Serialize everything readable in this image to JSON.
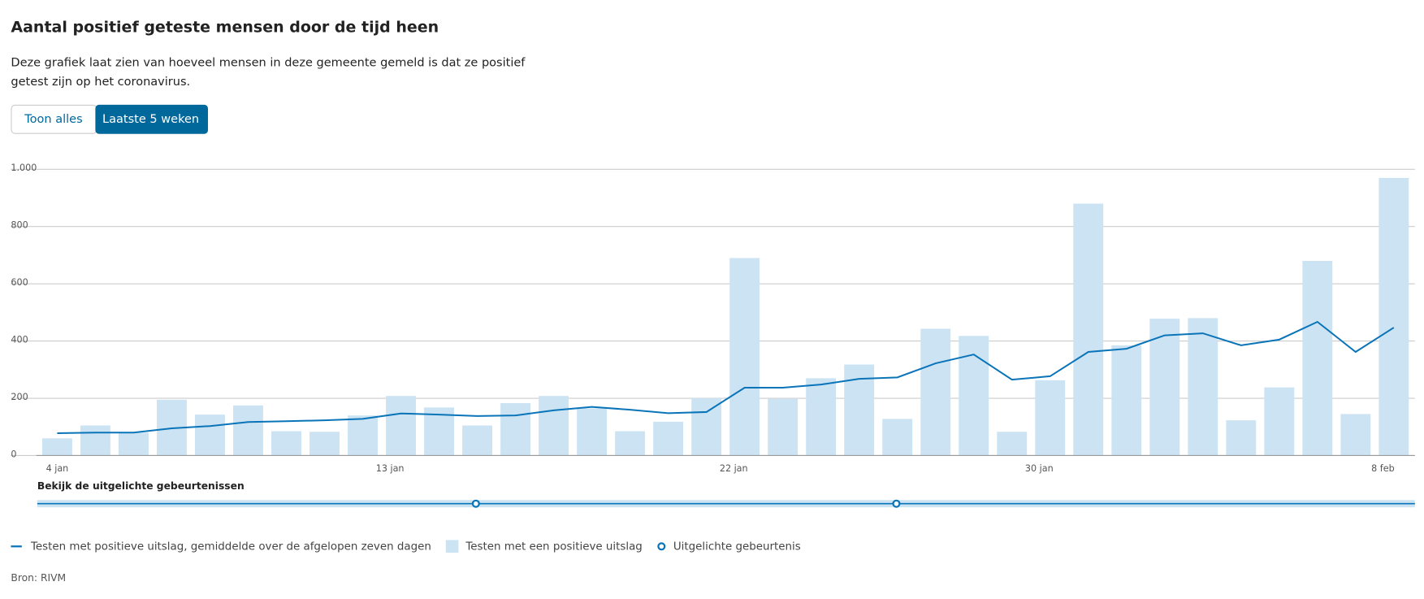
{
  "header": {
    "title": "Aantal positief geteste mensen door de tijd heen",
    "description_line1": "Deze grafiek laat zien van hoeveel mensen in deze gemeente gemeld is dat ze positief",
    "description_line2": "getest zijn op het coronavirus.",
    "buttons": [
      "Toon alles",
      "Laatste 5 weken"
    ]
  },
  "chart_data": {
    "type": "bar-line",
    "categories": [
      "4 jan",
      null,
      null,
      null,
      null,
      null,
      null,
      null,
      null,
      "13 jan",
      null,
      null,
      null,
      null,
      null,
      null,
      null,
      null,
      "22 jan",
      null,
      null,
      null,
      null,
      null,
      null,
      null,
      "30 jan",
      null,
      null,
      null,
      null,
      null,
      null,
      null,
      null,
      "8 feb"
    ],
    "series": [
      {
        "name": "Testen met een positieve uitslag",
        "type": "bar",
        "color": "#cce3f4",
        "values": [
          60,
          105,
          80,
          195,
          143,
          175,
          85,
          83,
          140,
          208,
          168,
          105,
          183,
          208,
          165,
          85,
          118,
          200,
          690,
          198,
          270,
          318,
          128,
          443,
          418,
          83,
          263,
          880,
          385,
          478,
          480,
          123,
          238,
          680,
          145,
          970
        ]
      },
      {
        "name": "Testen met positieve uitslag, gemiddelde over de afgelopen zeven dagen",
        "type": "line",
        "color": "#0a74b8",
        "values": [
          78,
          80,
          80,
          95,
          103,
          117,
          120,
          123,
          128,
          147,
          143,
          138,
          140,
          158,
          170,
          160,
          148,
          152,
          237,
          237,
          248,
          268,
          273,
          322,
          353,
          265,
          277,
          362,
          373,
          420,
          427,
          385,
          405,
          467,
          362,
          447
        ]
      }
    ],
    "ylim": [
      0,
      1000
    ],
    "yticks": [
      0,
      200,
      400,
      600,
      800,
      {
        "value": 1000,
        "label": "1.000"
      }
    ],
    "grid": true,
    "timeline_label": "Bekijk de uitgelichte gebeurtenissen",
    "event_legend": "Uitgelichte gebeurtenis",
    "source": "Bron: RIVM"
  }
}
